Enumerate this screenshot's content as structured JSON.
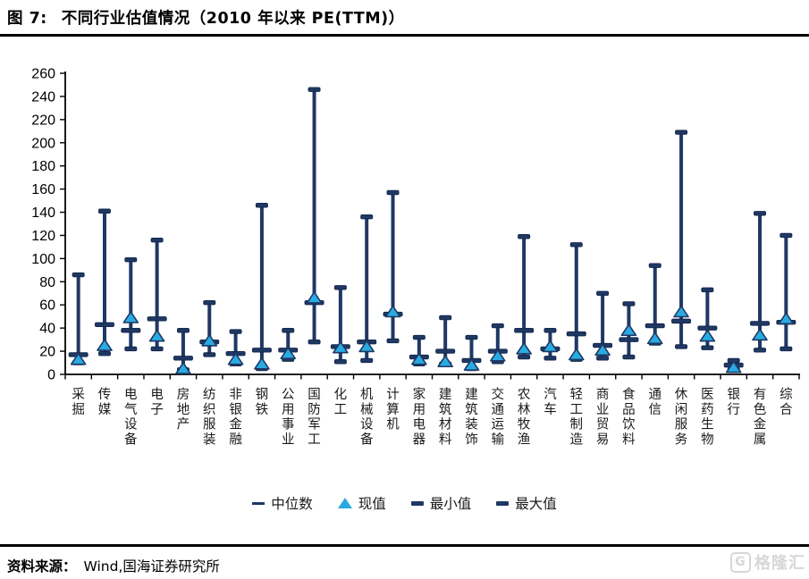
{
  "figure_label": "图 7:",
  "figure_title": "不同行业估值情况（2010 年以来 PE(TTM)）",
  "source_label": "资料来源：",
  "source_text": "Wind,国海证券研究所",
  "watermark_text": "格隆汇",
  "watermark_logo": "G",
  "colors": {
    "navy": "#1F3864",
    "navy_dark": "#15294D",
    "light_blue": "#29ABE2",
    "axis": "#000000",
    "label_text": "#1a1a1a"
  },
  "legend": [
    {
      "label": "中位数",
      "marker": "dash-thin",
      "key": "median"
    },
    {
      "label": "现值",
      "marker": "triangle",
      "key": "current"
    },
    {
      "label": "最小值",
      "marker": "dash-thick",
      "key": "minimum"
    },
    {
      "label": "最大值",
      "marker": "dash-thick",
      "key": "maximum"
    }
  ],
  "chart_data": {
    "type": "range-bar (high-low bars with median dash and current-value triangle)",
    "title": "不同行业估值情况（2010 年以来 PE(TTM)）",
    "xlabel": "",
    "ylabel": "",
    "ylim": [
      0,
      260
    ],
    "ytick_step": 20,
    "grid": false,
    "legend_position": "bottom",
    "categories": [
      "采掘",
      "传媒",
      "电气设备",
      "电子",
      "房地产",
      "纺织服装",
      "非银金融",
      "钢铁",
      "公用事业",
      "国防军工",
      "化工",
      "机械设备",
      "计算机",
      "家用电器",
      "建筑材料",
      "建筑装饰",
      "交通运输",
      "农林牧渔",
      "汽车",
      "轻工制造",
      "商业贸易",
      "食品饮料",
      "通信",
      "休闲服务",
      "医药生物",
      "银行",
      "有色金属",
      "综合"
    ],
    "series": [
      {
        "name": "中位数",
        "marker": "dash",
        "values": [
          17,
          43,
          38,
          48,
          14,
          28,
          18,
          21,
          21,
          62,
          24,
          28,
          52,
          15,
          20,
          12,
          20,
          38,
          22,
          35,
          25,
          30,
          42,
          46,
          40,
          8,
          44,
          45
        ]
      },
      {
        "name": "现值",
        "marker": "triangle",
        "values": [
          13,
          25,
          49,
          33,
          5,
          29,
          13,
          9,
          18,
          66,
          23,
          24,
          54,
          13,
          11,
          8,
          16,
          22,
          24,
          17,
          21,
          38,
          31,
          54,
          33,
          6,
          34,
          48
        ]
      },
      {
        "name": "最小值",
        "marker": "cap",
        "values": [
          10,
          18,
          22,
          22,
          4,
          17,
          9,
          5,
          13,
          28,
          11,
          12,
          29,
          9,
          9,
          5,
          11,
          15,
          14,
          13,
          14,
          15,
          27,
          24,
          23,
          4,
          21,
          22
        ]
      },
      {
        "name": "最大值",
        "marker": "cap",
        "values": [
          86,
          141,
          99,
          116,
          38,
          62,
          37,
          146,
          38,
          246,
          75,
          136,
          157,
          32,
          49,
          32,
          42,
          119,
          38,
          112,
          70,
          61,
          94,
          209,
          73,
          12,
          139,
          120
        ]
      }
    ]
  }
}
